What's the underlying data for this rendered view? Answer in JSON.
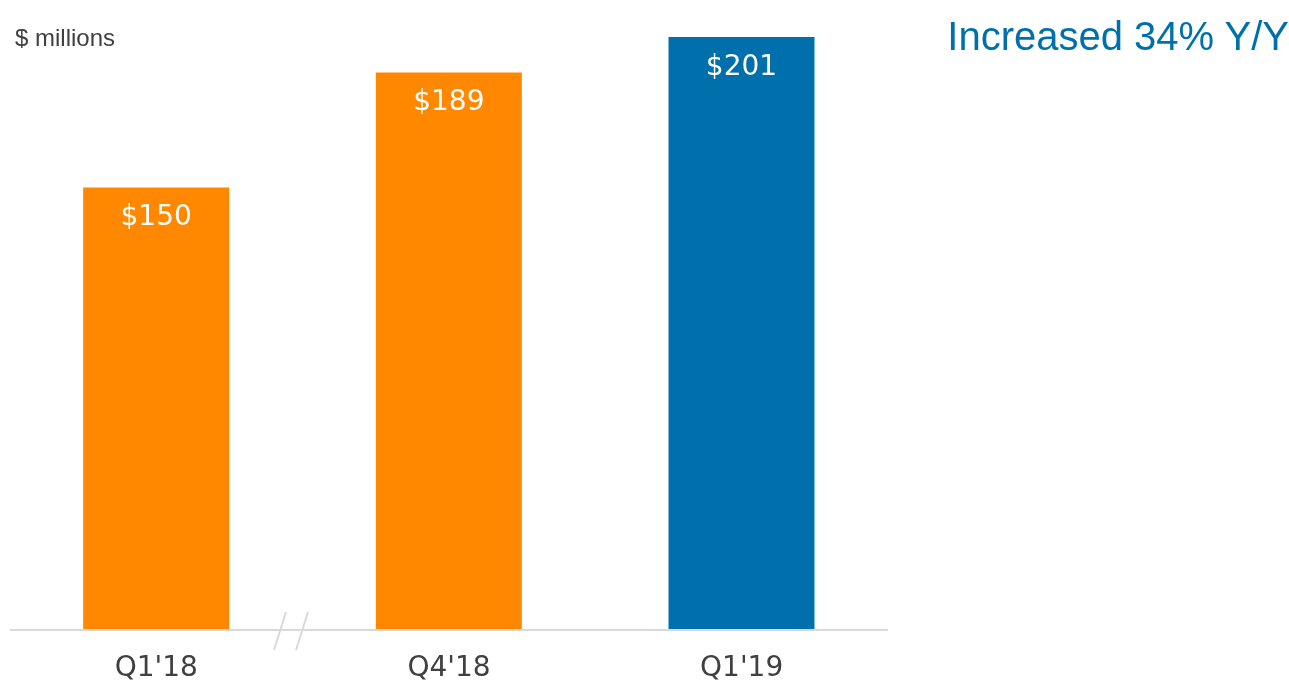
{
  "chart_data": {
    "type": "bar",
    "ylabel": "$ millions",
    "annotations": [
      "Increased 34% Y/Y"
    ],
    "categories": [
      "Q1'18",
      "Q4'18",
      "Q1'19"
    ],
    "values": [
      150,
      189,
      201
    ],
    "colors": [
      "#ff8800",
      "#ff8800",
      "#0070ad"
    ],
    "value_labels": [
      "$150",
      "$189",
      "$201"
    ]
  }
}
